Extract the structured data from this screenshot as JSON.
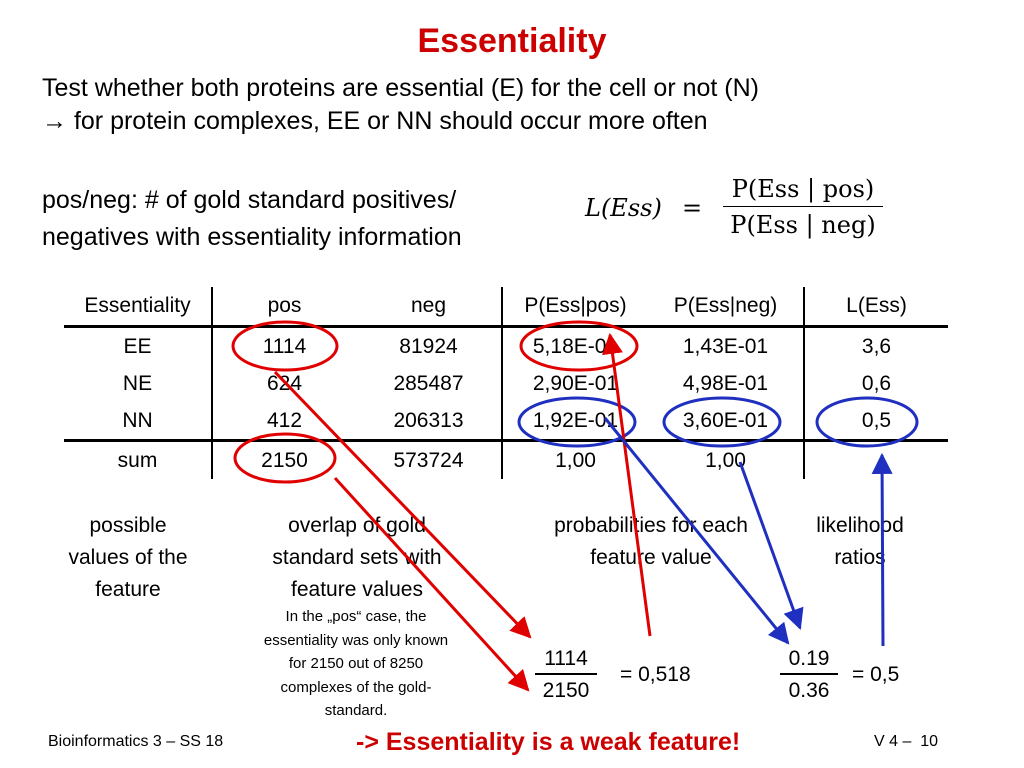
{
  "title": "Essentiality",
  "intro": {
    "line1": "Test whether both proteins are essential (E) for the cell or not (N)",
    "line2": "→ for protein complexes, EE or NN should occur more often"
  },
  "posneg": {
    "line1": "pos/neg: # of gold standard positives/",
    "line2": "negatives with essentiality information"
  },
  "formula": {
    "lhs": "L(Ess)",
    "equals": "=",
    "numerator": "P(Ess | pos)",
    "denominator": "P(Ess | neg)"
  },
  "table": {
    "headers": [
      "Essentiality",
      "pos",
      "neg",
      "P(Ess|pos)",
      "P(Ess|neg)",
      "L(Ess)"
    ],
    "rows": [
      [
        "EE",
        "1114",
        "81924",
        "5,18E-01",
        "1,43E-01",
        "3,6"
      ],
      [
        "NE",
        "624",
        "285487",
        "2,90E-01",
        "4,98E-01",
        "0,6"
      ],
      [
        "NN",
        "412",
        "206313",
        "1,92E-01",
        "3,60E-01",
        "0,5"
      ],
      [
        "sum",
        "2150",
        "573724",
        "1,00",
        "1,00",
        ""
      ]
    ]
  },
  "captions": {
    "possible": [
      "possible",
      "values of the",
      "feature"
    ],
    "overlap": [
      "overlap of gold",
      "standard sets with",
      "feature values"
    ],
    "probabilities": [
      "probabilities for each",
      "feature value"
    ],
    "likelihood": [
      "likelihood",
      "ratios"
    ]
  },
  "note": [
    "In the „pos“ case, the",
    "essentiality was only known",
    "for 2150 out of 8250",
    "complexes of the gold-",
    "standard."
  ],
  "fraction1": {
    "numerator": "1114",
    "denominator": "2150",
    "result": "= 0,518"
  },
  "fraction2": {
    "numerator": "0.19",
    "denominator": "0.36",
    "result": "= 0,5"
  },
  "footer": {
    "left": "Bioinformatics 3 – SS 18",
    "conclusion": "-> Essentiality is a weak feature!",
    "page": "V 4 –",
    "page_number": "10"
  },
  "colors": {
    "accent_red": "#cc0000",
    "highlight_blue": "#1f2fbf"
  }
}
